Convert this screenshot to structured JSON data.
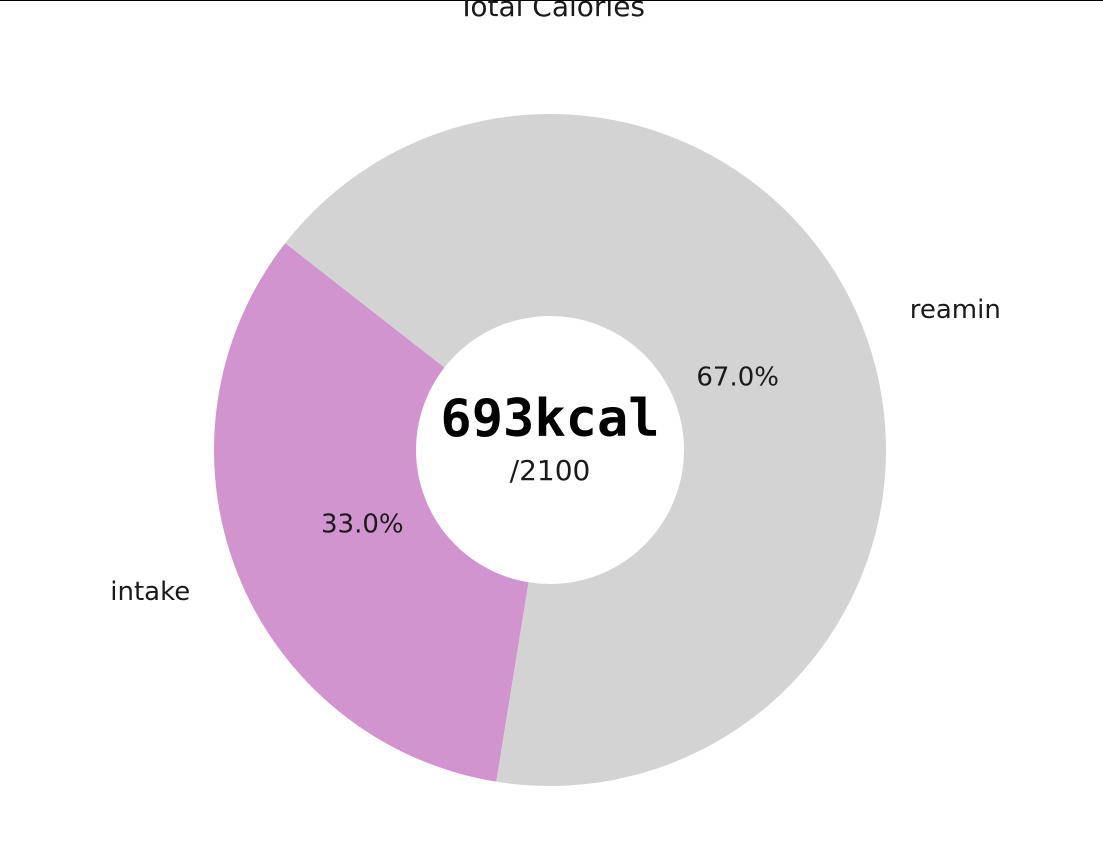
{
  "chart_data": {
    "type": "pie",
    "title": "Total Calories",
    "donut": true,
    "center_text": {
      "value": "693kcal",
      "total": "/2100"
    },
    "start_angle_deg": 142,
    "counterclockwise": true,
    "slices": [
      {
        "label": "intake",
        "value": 693,
        "percent_label": "33.0%",
        "color": "#d194cf"
      },
      {
        "label": "reamin",
        "value": 1407,
        "percent_label": "67.0%",
        "color": "#d3d3d3"
      }
    ]
  }
}
